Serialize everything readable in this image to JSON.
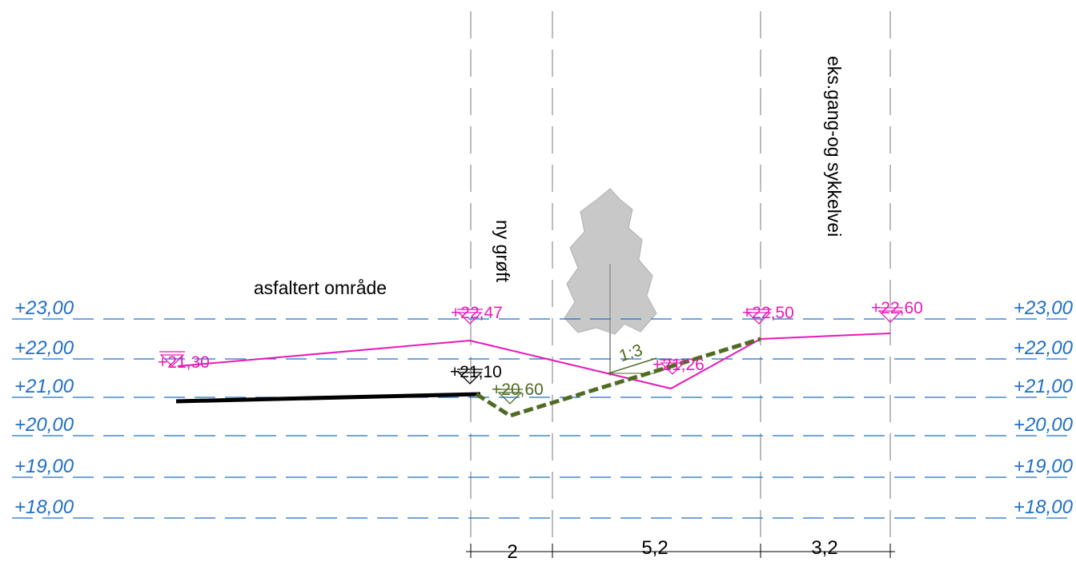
{
  "levels": [
    {
      "left": "+23,00",
      "right": "+23,00"
    },
    {
      "left": "+22,00",
      "right": "+22,00"
    },
    {
      "left": "+21,00",
      "right": "+21,00"
    },
    {
      "left": "+20,00",
      "right": "+20,00"
    },
    {
      "left": "+19,00",
      "right": "+19,00"
    },
    {
      "left": "+18,00",
      "right": "+18,00"
    }
  ],
  "elevations": [
    "+21,30",
    "+22,47",
    "+22,50",
    "+22,60",
    "+21,26",
    "+21,10",
    "+20,60"
  ],
  "labels": {
    "asphalt": "asfaltert område",
    "ditch": "ny grøft",
    "path": "eks.gang-og sykkelvei",
    "slope": "1:3"
  },
  "dimensions": [
    "2",
    "5,2",
    "3,2"
  ]
}
